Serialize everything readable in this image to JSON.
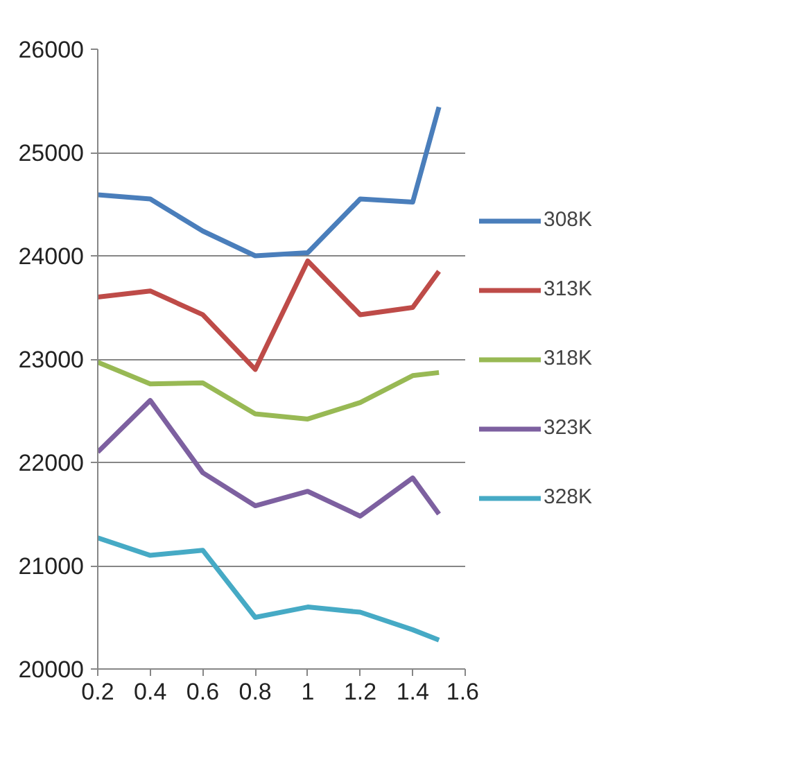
{
  "chart_data": {
    "type": "line",
    "x": [
      0.2,
      0.4,
      0.6,
      0.8,
      1.0,
      1.2,
      1.4,
      1.5
    ],
    "series": [
      {
        "name": "308K",
        "color": "#4a7ebb",
        "values": [
          24590,
          24550,
          24240,
          24000,
          24030,
          24550,
          24520,
          25440
        ]
      },
      {
        "name": "313K",
        "color": "#be4b48",
        "values": [
          23600,
          23660,
          23430,
          22900,
          23950,
          23430,
          23500,
          23850
        ]
      },
      {
        "name": "318K",
        "color": "#98b954",
        "values": [
          22970,
          22760,
          22770,
          22470,
          22420,
          22580,
          22840,
          22870
        ]
      },
      {
        "name": "323K",
        "color": "#7d60a0",
        "values": [
          22100,
          22600,
          21900,
          21580,
          21720,
          21480,
          21850,
          21500
        ]
      },
      {
        "name": "328K",
        "color": "#46aac5",
        "values": [
          21270,
          21100,
          21150,
          20500,
          20600,
          20550,
          20380,
          20280
        ]
      }
    ],
    "xlim": [
      0.2,
      1.6
    ],
    "xticks": [
      0.2,
      0.4,
      0.6,
      0.8,
      1,
      1.2,
      1.4,
      1.6
    ],
    "ylim": [
      20000,
      26000
    ],
    "yticks": [
      20000,
      21000,
      22000,
      23000,
      24000,
      25000,
      26000
    ],
    "grid": "y",
    "legend": "right",
    "marker": "none",
    "line_style": "solid"
  }
}
